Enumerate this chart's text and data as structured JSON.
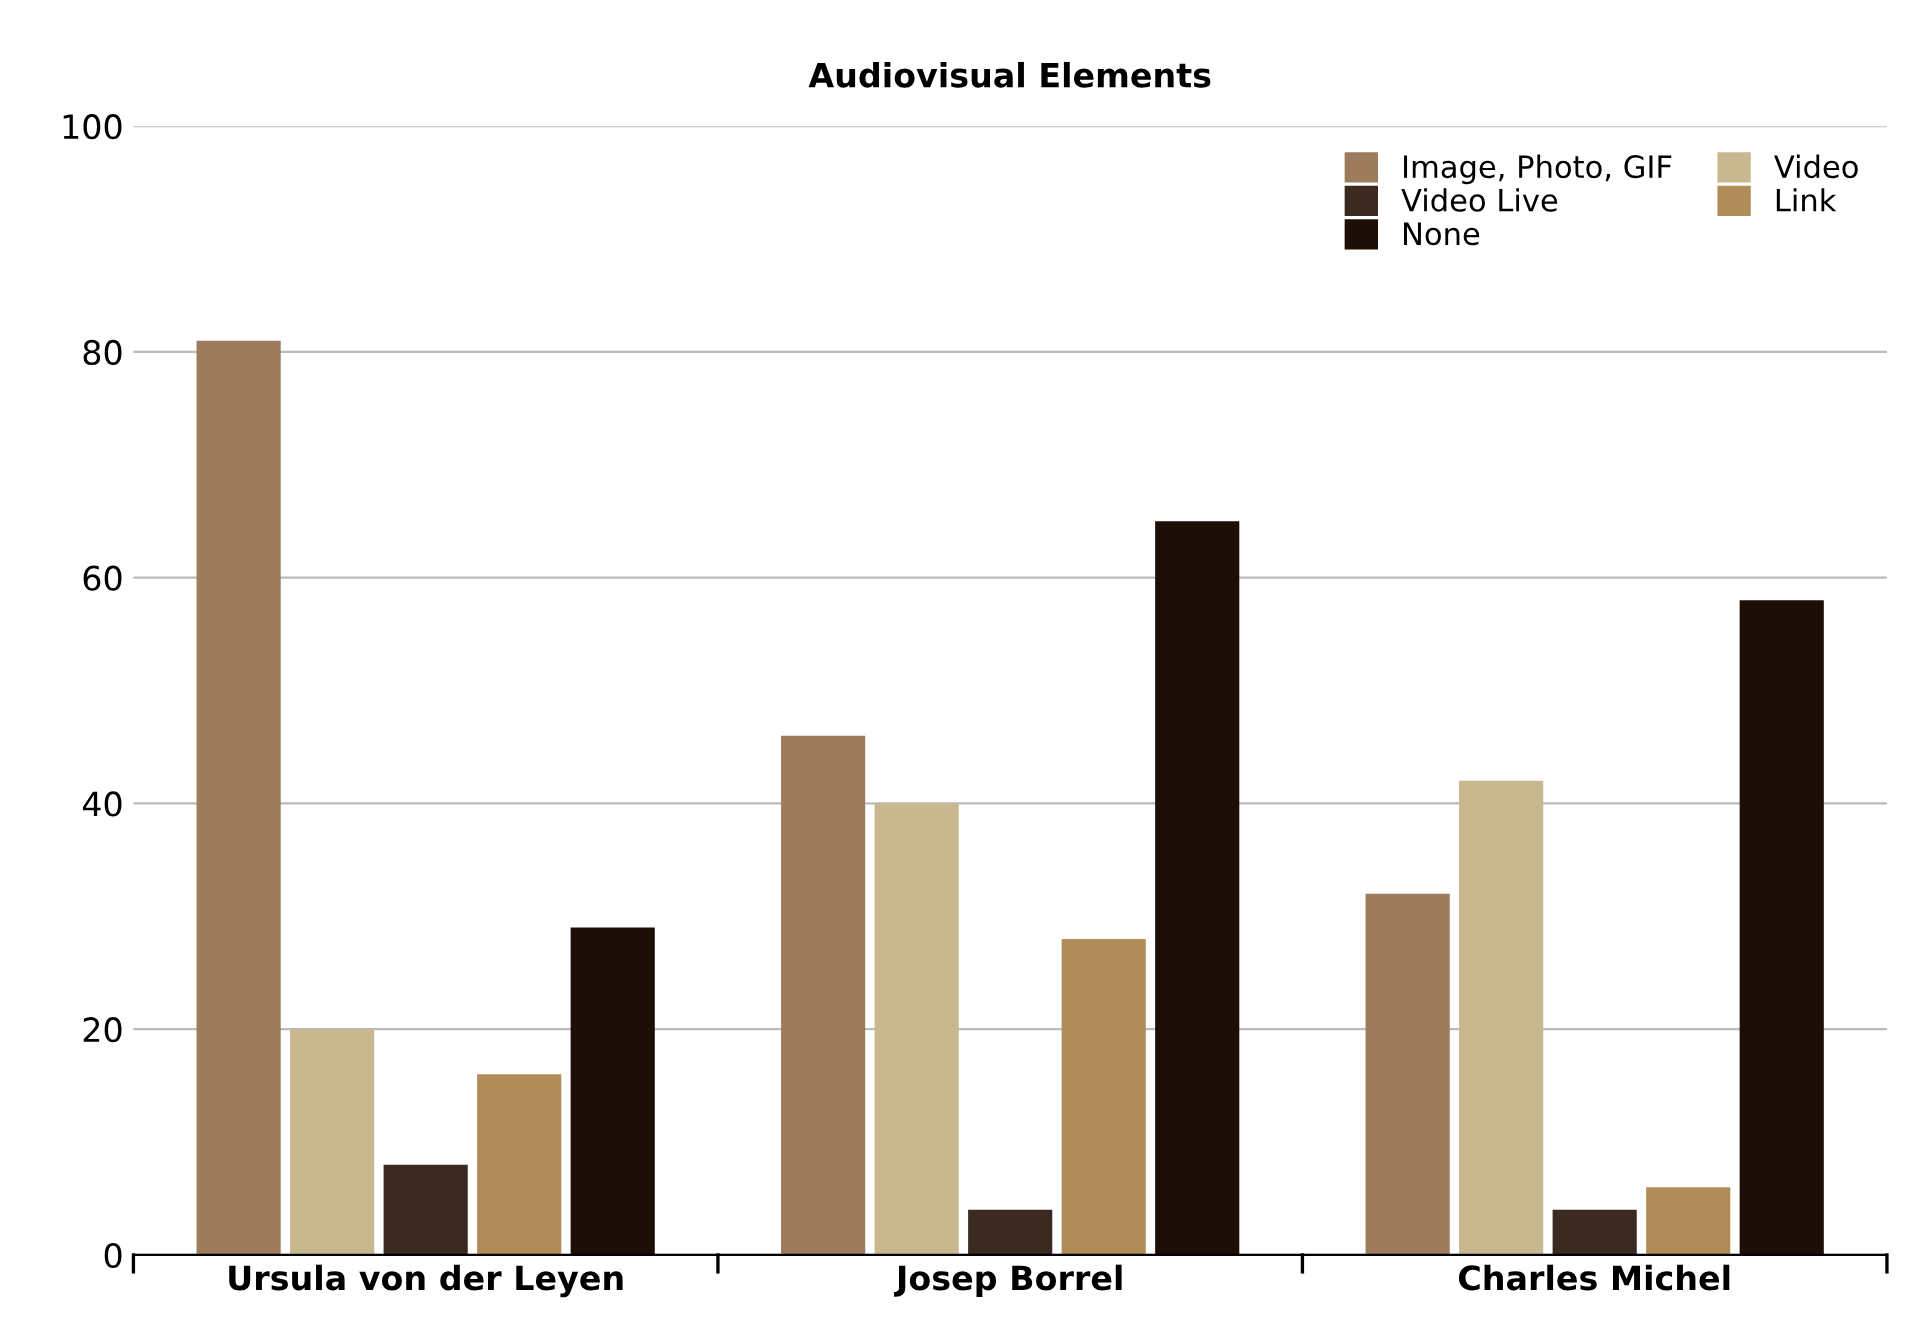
{
  "chart_data": {
    "type": "bar",
    "title": "Audiovisual Elements",
    "categories": [
      "Ursula von der Leyen",
      "Josep Borrel",
      "Charles Michel"
    ],
    "series": [
      {
        "name": "Image, Photo, GIF",
        "color": "#9c7c5c",
        "values": [
          81,
          46,
          32
        ]
      },
      {
        "name": "Video",
        "color": "#c9b78f",
        "values": [
          20,
          40,
          42
        ]
      },
      {
        "name": "Video Live",
        "color": "#3b2a22",
        "values": [
          8,
          4,
          4
        ]
      },
      {
        "name": "Link",
        "color": "#b08d58",
        "values": [
          16,
          28,
          6
        ]
      },
      {
        "name": "None",
        "color": "#1e0e08",
        "values": [
          29,
          65,
          58
        ]
      }
    ],
    "ylim": [
      0,
      100
    ],
    "yticks": [
      0,
      20,
      40,
      60,
      80,
      100
    ],
    "grid": "y",
    "legend": "top right"
  }
}
